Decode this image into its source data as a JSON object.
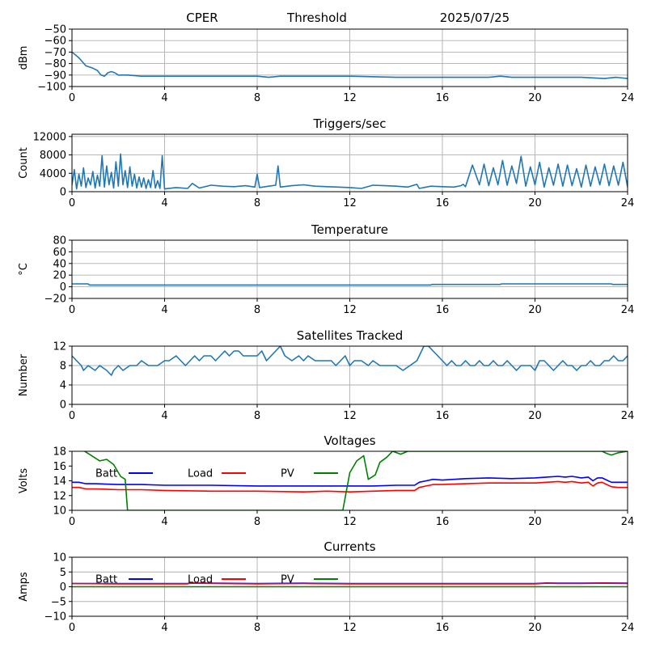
{
  "header": {
    "site": "CPER",
    "mode": "Threshold",
    "date": "2025/07/25"
  },
  "colors": {
    "series": "#1f77b4",
    "batt": "#0000ff",
    "load": "#ff0000",
    "pv": "#008000",
    "grid": "#b0b0b0"
  },
  "chart_data": [
    {
      "type": "line",
      "title": "",
      "ylabel": "dBm",
      "xlim": [
        0,
        24
      ],
      "ylim": [
        -100,
        -50
      ],
      "xticks": [
        0,
        4,
        8,
        12,
        16,
        20,
        24
      ],
      "yticks": [
        -100,
        -90,
        -80,
        -70,
        -60,
        -50
      ],
      "ytick_labels": [
        "−100",
        "−90",
        "−80",
        "−70",
        "−60",
        "−50"
      ],
      "grid": true,
      "series": [
        {
          "color": "#1f77b4",
          "x": [
            0,
            0.3,
            0.6,
            0.9,
            1.1,
            1.25,
            1.4,
            1.55,
            1.7,
            1.85,
            2.0,
            2.4,
            3.0,
            4.0,
            6,
            8,
            8.5,
            9,
            10,
            12,
            14,
            16,
            17,
            18,
            18.5,
            19,
            20,
            21,
            22,
            23,
            23.5,
            24
          ],
          "y": [
            -70,
            -75,
            -82,
            -84,
            -86,
            -90,
            -91,
            -88,
            -87,
            -88,
            -90,
            -90,
            -91,
            -91,
            -91,
            -91,
            -92,
            -91,
            -91,
            -91,
            -92,
            -92,
            -92,
            -92,
            -91,
            -92,
            -92,
            -92,
            -92,
            -93,
            -92,
            -93
          ]
        }
      ]
    },
    {
      "type": "line",
      "title": "Triggers/sec",
      "ylabel": "Count",
      "xlim": [
        0,
        24
      ],
      "ylim": [
        0,
        12500
      ],
      "xticks": [
        0,
        4,
        8,
        12,
        16,
        20,
        24
      ],
      "yticks": [
        0,
        4000,
        8000,
        12000
      ],
      "grid": true,
      "series": [
        {
          "color": "#1f77b4",
          "x": [
            0,
            0.1,
            0.2,
            0.3,
            0.4,
            0.5,
            0.6,
            0.7,
            0.8,
            0.9,
            1.0,
            1.1,
            1.2,
            1.3,
            1.4,
            1.5,
            1.6,
            1.7,
            1.8,
            1.9,
            2.0,
            2.1,
            2.2,
            2.3,
            2.4,
            2.5,
            2.6,
            2.7,
            2.8,
            2.9,
            3.0,
            3.1,
            3.2,
            3.3,
            3.4,
            3.5,
            3.6,
            3.7,
            3.8,
            3.9,
            4.0,
            4.5,
            5.0,
            5.2,
            5.5,
            6.0,
            6.5,
            7.0,
            7.5,
            7.9,
            8.0,
            8.1,
            8.5,
            8.8,
            8.9,
            9.0,
            9.5,
            10.0,
            10.5,
            11.0,
            11.5,
            12.0,
            12.5,
            13.0,
            13.5,
            14.0,
            14.5,
            14.9,
            15.0,
            15.5,
            16.0,
            16.5,
            16.8,
            16.9,
            17.0,
            17.3,
            17.6,
            17.8,
            18.0,
            18.2,
            18.4,
            18.6,
            18.8,
            19.0,
            19.2,
            19.4,
            19.6,
            19.8,
            20.0,
            20.2,
            20.4,
            20.6,
            20.8,
            21.0,
            21.2,
            21.4,
            21.6,
            21.8,
            22.0,
            22.2,
            22.4,
            22.6,
            22.8,
            23.0,
            23.2,
            23.4,
            23.6,
            23.8,
            24.0
          ],
          "y": [
            1500,
            4800,
            600,
            3800,
            1200,
            5200,
            900,
            3000,
            1500,
            4400,
            800,
            3600,
            1200,
            7800,
            1000,
            5600,
            1500,
            4200,
            800,
            6500,
            1200,
            8200,
            1500,
            4600,
            900,
            5400,
            1200,
            3800,
            800,
            3200,
            1000,
            3000,
            700,
            2600,
            900,
            4600,
            800,
            2400,
            700,
            7800,
            600,
            900,
            700,
            1800,
            800,
            1400,
            1200,
            1100,
            1300,
            1000,
            3800,
            900,
            1200,
            1400,
            5600,
            1000,
            1300,
            1500,
            1200,
            1100,
            1000,
            900,
            700,
            1400,
            1300,
            1200,
            1000,
            1600,
            700,
            1200,
            1100,
            1000,
            1300,
            1600,
            1100,
            5800,
            1500,
            6000,
            1300,
            5200,
            1500,
            6800,
            1400,
            5600,
            1800,
            7700,
            1200,
            5400,
            1500,
            6400,
            1000,
            5200,
            1400,
            6000,
            1200,
            5800,
            1300,
            5000,
            1000,
            5800,
            1200,
            5400,
            1500,
            6000,
            1300,
            5600,
            1400,
            6400,
            1000
          ]
        }
      ]
    },
    {
      "type": "line",
      "title": "Temperature",
      "ylabel": "°C",
      "xlim": [
        0,
        24
      ],
      "ylim": [
        -20,
        80
      ],
      "xticks": [
        0,
        4,
        8,
        12,
        16,
        20,
        24
      ],
      "yticks": [
        -20,
        0,
        20,
        40,
        60,
        80
      ],
      "ytick_labels": [
        "−20",
        "0",
        "20",
        "40",
        "60",
        "80"
      ],
      "grid": true,
      "series": [
        {
          "color": "#1f77b4",
          "x": [
            0,
            0.7,
            0.75,
            15.5,
            15.55,
            18.5,
            18.55,
            23.3,
            23.35,
            24
          ],
          "y": [
            5,
            5,
            3,
            3,
            4,
            4,
            5,
            5,
            4,
            4
          ]
        }
      ]
    },
    {
      "type": "line",
      "title": "Satellites Tracked",
      "ylabel": "Number",
      "xlim": [
        0,
        24
      ],
      "ylim": [
        0,
        12
      ],
      "xticks": [
        0,
        4,
        8,
        12,
        16,
        20,
        24
      ],
      "yticks": [
        0,
        4,
        8,
        12
      ],
      "grid": true,
      "series": [
        {
          "color": "#1f77b4",
          "x": [
            0,
            0.2,
            0.4,
            0.5,
            0.7,
            1.0,
            1.2,
            1.5,
            1.7,
            1.8,
            2.0,
            2.2,
            2.5,
            2.8,
            3.0,
            3.3,
            3.5,
            3.7,
            4.0,
            4.2,
            4.5,
            4.7,
            4.9,
            5.1,
            5.3,
            5.5,
            5.7,
            6.0,
            6.2,
            6.4,
            6.6,
            6.8,
            7.0,
            7.2,
            7.4,
            7.6,
            7.8,
            8.0,
            8.2,
            8.4,
            8.6,
            8.8,
            9.0,
            9.2,
            9.5,
            9.8,
            10.0,
            10.2,
            10.5,
            10.8,
            11.0,
            11.2,
            11.4,
            11.6,
            11.8,
            12.0,
            12.2,
            12.5,
            12.8,
            13.0,
            13.3,
            13.6,
            14.0,
            14.3,
            14.6,
            14.9,
            15.0,
            15.2,
            15.4,
            15.6,
            15.8,
            16.0,
            16.2,
            16.4,
            16.6,
            16.8,
            17.0,
            17.2,
            17.4,
            17.6,
            17.8,
            18.0,
            18.2,
            18.4,
            18.6,
            18.8,
            19.0,
            19.2,
            19.4,
            19.6,
            19.8,
            20.0,
            20.2,
            20.4,
            20.6,
            20.8,
            21.0,
            21.2,
            21.4,
            21.6,
            21.8,
            22.0,
            22.2,
            22.4,
            22.6,
            22.8,
            23.0,
            23.2,
            23.4,
            23.6,
            23.8,
            24.0
          ],
          "y": [
            10,
            9,
            8,
            7,
            8,
            7,
            8,
            7,
            6,
            7,
            8,
            7,
            8,
            8,
            9,
            8,
            8,
            8,
            9,
            9,
            10,
            9,
            8,
            9,
            10,
            9,
            10,
            10,
            9,
            10,
            11,
            10,
            11,
            11,
            10,
            10,
            10,
            10,
            11,
            9,
            10,
            11,
            12,
            10,
            9,
            10,
            9,
            10,
            9,
            9,
            9,
            9,
            8,
            9,
            10,
            8,
            9,
            9,
            8,
            9,
            8,
            8,
            8,
            7,
            8,
            9,
            10,
            12,
            12,
            11,
            10,
            9,
            8,
            9,
            8,
            8,
            9,
            8,
            8,
            9,
            8,
            8,
            9,
            8,
            8,
            9,
            8,
            7,
            8,
            8,
            8,
            7,
            9,
            9,
            8,
            7,
            8,
            9,
            8,
            8,
            7,
            8,
            8,
            9,
            8,
            8,
            9,
            9,
            10,
            9,
            9,
            10
          ]
        }
      ]
    },
    {
      "type": "line",
      "title": "Voltages",
      "ylabel": "Volts",
      "xlim": [
        0,
        24
      ],
      "ylim": [
        10,
        18
      ],
      "xticks": [
        0,
        4,
        8,
        12,
        16,
        20,
        24
      ],
      "yticks": [
        10,
        12,
        14,
        16,
        18
      ],
      "grid": false,
      "legend": "top",
      "series": [
        {
          "name": "Batt",
          "color": "#0000ff",
          "x": [
            0,
            0.3,
            0.6,
            1.0,
            2.0,
            3.0,
            4.0,
            6.0,
            8.0,
            10.0,
            11.0,
            12.0,
            13.0,
            14.0,
            14.8,
            15.0,
            15.3,
            15.6,
            16.0,
            17.0,
            18.0,
            19.0,
            20.0,
            20.5,
            21.0,
            21.3,
            21.6,
            22.0,
            22.3,
            22.5,
            22.7,
            22.9,
            23.1,
            23.3,
            23.6,
            24.0
          ],
          "y": [
            13.8,
            13.8,
            13.6,
            13.6,
            13.5,
            13.5,
            13.4,
            13.4,
            13.3,
            13.3,
            13.3,
            13.3,
            13.3,
            13.4,
            13.4,
            13.8,
            14.0,
            14.2,
            14.1,
            14.3,
            14.4,
            14.3,
            14.4,
            14.5,
            14.6,
            14.5,
            14.6,
            14.4,
            14.5,
            14.0,
            14.4,
            14.4,
            14.1,
            13.8,
            13.8,
            13.8
          ]
        },
        {
          "name": "Load",
          "color": "#ff0000",
          "x": [
            0,
            0.3,
            0.6,
            1.0,
            2.0,
            3.0,
            4.0,
            6.0,
            8.0,
            10.0,
            11.0,
            12.0,
            13.0,
            14.0,
            14.8,
            15.0,
            15.3,
            15.6,
            16.0,
            17.0,
            18.0,
            19.0,
            20.0,
            20.5,
            21.0,
            21.3,
            21.6,
            22.0,
            22.3,
            22.5,
            22.7,
            22.9,
            23.1,
            23.3,
            23.6,
            24.0
          ],
          "y": [
            13.1,
            13.1,
            12.9,
            12.9,
            12.8,
            12.8,
            12.7,
            12.6,
            12.6,
            12.5,
            12.6,
            12.5,
            12.6,
            12.7,
            12.7,
            13.1,
            13.3,
            13.5,
            13.5,
            13.6,
            13.7,
            13.7,
            13.7,
            13.8,
            13.9,
            13.8,
            13.9,
            13.7,
            13.8,
            13.3,
            13.7,
            13.8,
            13.5,
            13.2,
            13.1,
            13.1
          ]
        },
        {
          "name": "PV",
          "color": "#008000",
          "x": [
            0.55,
            0.9,
            1.2,
            1.5,
            1.8,
            2.1,
            2.3,
            2.4,
            11.7,
            12.0,
            12.3,
            12.6,
            12.8,
            13.1,
            13.3,
            13.6,
            13.85,
            14.2,
            14.5,
            14.8,
            22.9,
            23.1,
            23.3,
            23.6,
            24.0
          ],
          "y": [
            18.0,
            17.3,
            16.7,
            16.9,
            16.2,
            14.6,
            14.2,
            10.0,
            10.0,
            15.1,
            16.7,
            17.4,
            14.2,
            14.8,
            16.5,
            17.2,
            18.0,
            17.6,
            18.0,
            18.0,
            18.0,
            17.7,
            17.5,
            17.8,
            18.0
          ]
        }
      ]
    },
    {
      "type": "line",
      "title": "Currents",
      "ylabel": "Amps",
      "xlim": [
        0,
        24
      ],
      "ylim": [
        -10,
        10
      ],
      "xticks": [
        0,
        4,
        8,
        12,
        16,
        20,
        24
      ],
      "yticks": [
        -10,
        -5,
        0,
        5,
        10
      ],
      "ytick_labels": [
        "−10",
        "−5",
        "0",
        "5",
        "10"
      ],
      "grid": true,
      "legend": "top",
      "series": [
        {
          "name": "Batt",
          "color": "#0000ff",
          "x": [
            0,
            2,
            4,
            5,
            5.1,
            8,
            10,
            12,
            14,
            16,
            18,
            20,
            20.5,
            21,
            22,
            23,
            24
          ],
          "y": [
            1.1,
            1.1,
            1.1,
            1.1,
            1.3,
            1.1,
            1.2,
            1.1,
            1.1,
            1.1,
            1.1,
            1.1,
            1.3,
            1.2,
            1.2,
            1.3,
            1.2
          ]
        },
        {
          "name": "Load",
          "color": "#ff0000",
          "x": [
            0,
            2,
            4,
            5,
            5.1,
            8,
            10,
            12,
            14,
            16,
            18,
            20,
            20.5,
            21,
            22,
            23,
            24
          ],
          "y": [
            1.1,
            1.0,
            1.0,
            1.0,
            1.2,
            1.0,
            1.1,
            1.0,
            1.0,
            1.0,
            1.0,
            1.0,
            1.2,
            1.1,
            1.1,
            1.2,
            1.1
          ]
        },
        {
          "name": "PV",
          "color": "#008000",
          "x": [
            0,
            24
          ],
          "y": [
            0,
            0
          ]
        }
      ]
    }
  ]
}
